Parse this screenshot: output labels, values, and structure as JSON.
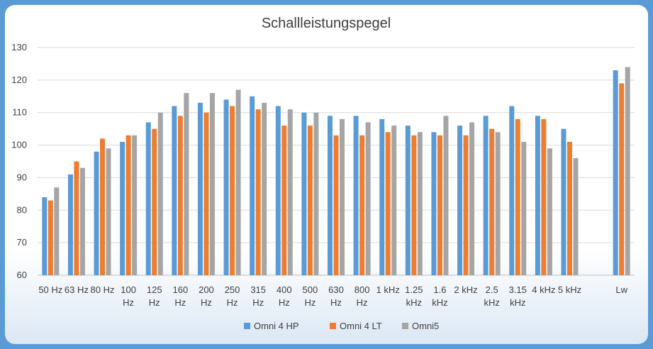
{
  "chart_data": {
    "type": "bar",
    "title": "Schallleistungspegel",
    "xlabel": "",
    "ylabel": "",
    "ylim": [
      60,
      130
    ],
    "yticks": [
      60,
      70,
      80,
      90,
      100,
      110,
      120,
      130
    ],
    "grid": true,
    "legend_position": "bottom",
    "categories": [
      [
        "50 Hz"
      ],
      [
        "63 Hz"
      ],
      [
        "80 Hz"
      ],
      [
        "100",
        "Hz"
      ],
      [
        "125",
        "Hz"
      ],
      [
        "160",
        "Hz"
      ],
      [
        "200",
        "Hz"
      ],
      [
        "250",
        "Hz"
      ],
      [
        "315",
        "Hz"
      ],
      [
        "400",
        "Hz"
      ],
      [
        "500",
        "Hz"
      ],
      [
        "630",
        "Hz"
      ],
      [
        "800",
        "Hz"
      ],
      [
        "1 kHz"
      ],
      [
        "1.25",
        "kHz"
      ],
      [
        "1.6",
        "kHz"
      ],
      [
        "2 kHz"
      ],
      [
        "2.5",
        "kHz"
      ],
      [
        "3.15",
        "kHz"
      ],
      [
        "4 kHz"
      ],
      [
        "5 kHz"
      ],
      [
        ""
      ],
      [
        "Lw"
      ]
    ],
    "series": [
      {
        "name": "Omni 4 HP",
        "color": "#5b9bd5",
        "values": [
          84,
          91,
          98,
          101,
          107,
          112,
          113,
          114,
          115,
          112,
          110,
          109,
          109,
          108,
          106,
          104,
          106,
          109,
          112,
          109,
          105,
          null,
          123
        ]
      },
      {
        "name": "Omni 4 LT",
        "color": "#ed7d31",
        "values": [
          83,
          95,
          102,
          103,
          105,
          109,
          110,
          112,
          111,
          106,
          106,
          103,
          103,
          104,
          103,
          103,
          103,
          105,
          108,
          108,
          101,
          null,
          119
        ]
      },
      {
        "name": "Omni5",
        "color": "#a5a5a5",
        "values": [
          87,
          93,
          99,
          103,
          110,
          116,
          116,
          117,
          113,
          111,
          110,
          108,
          107,
          106,
          104,
          109,
          107,
          104,
          101,
          99,
          96,
          null,
          124
        ]
      }
    ]
  }
}
